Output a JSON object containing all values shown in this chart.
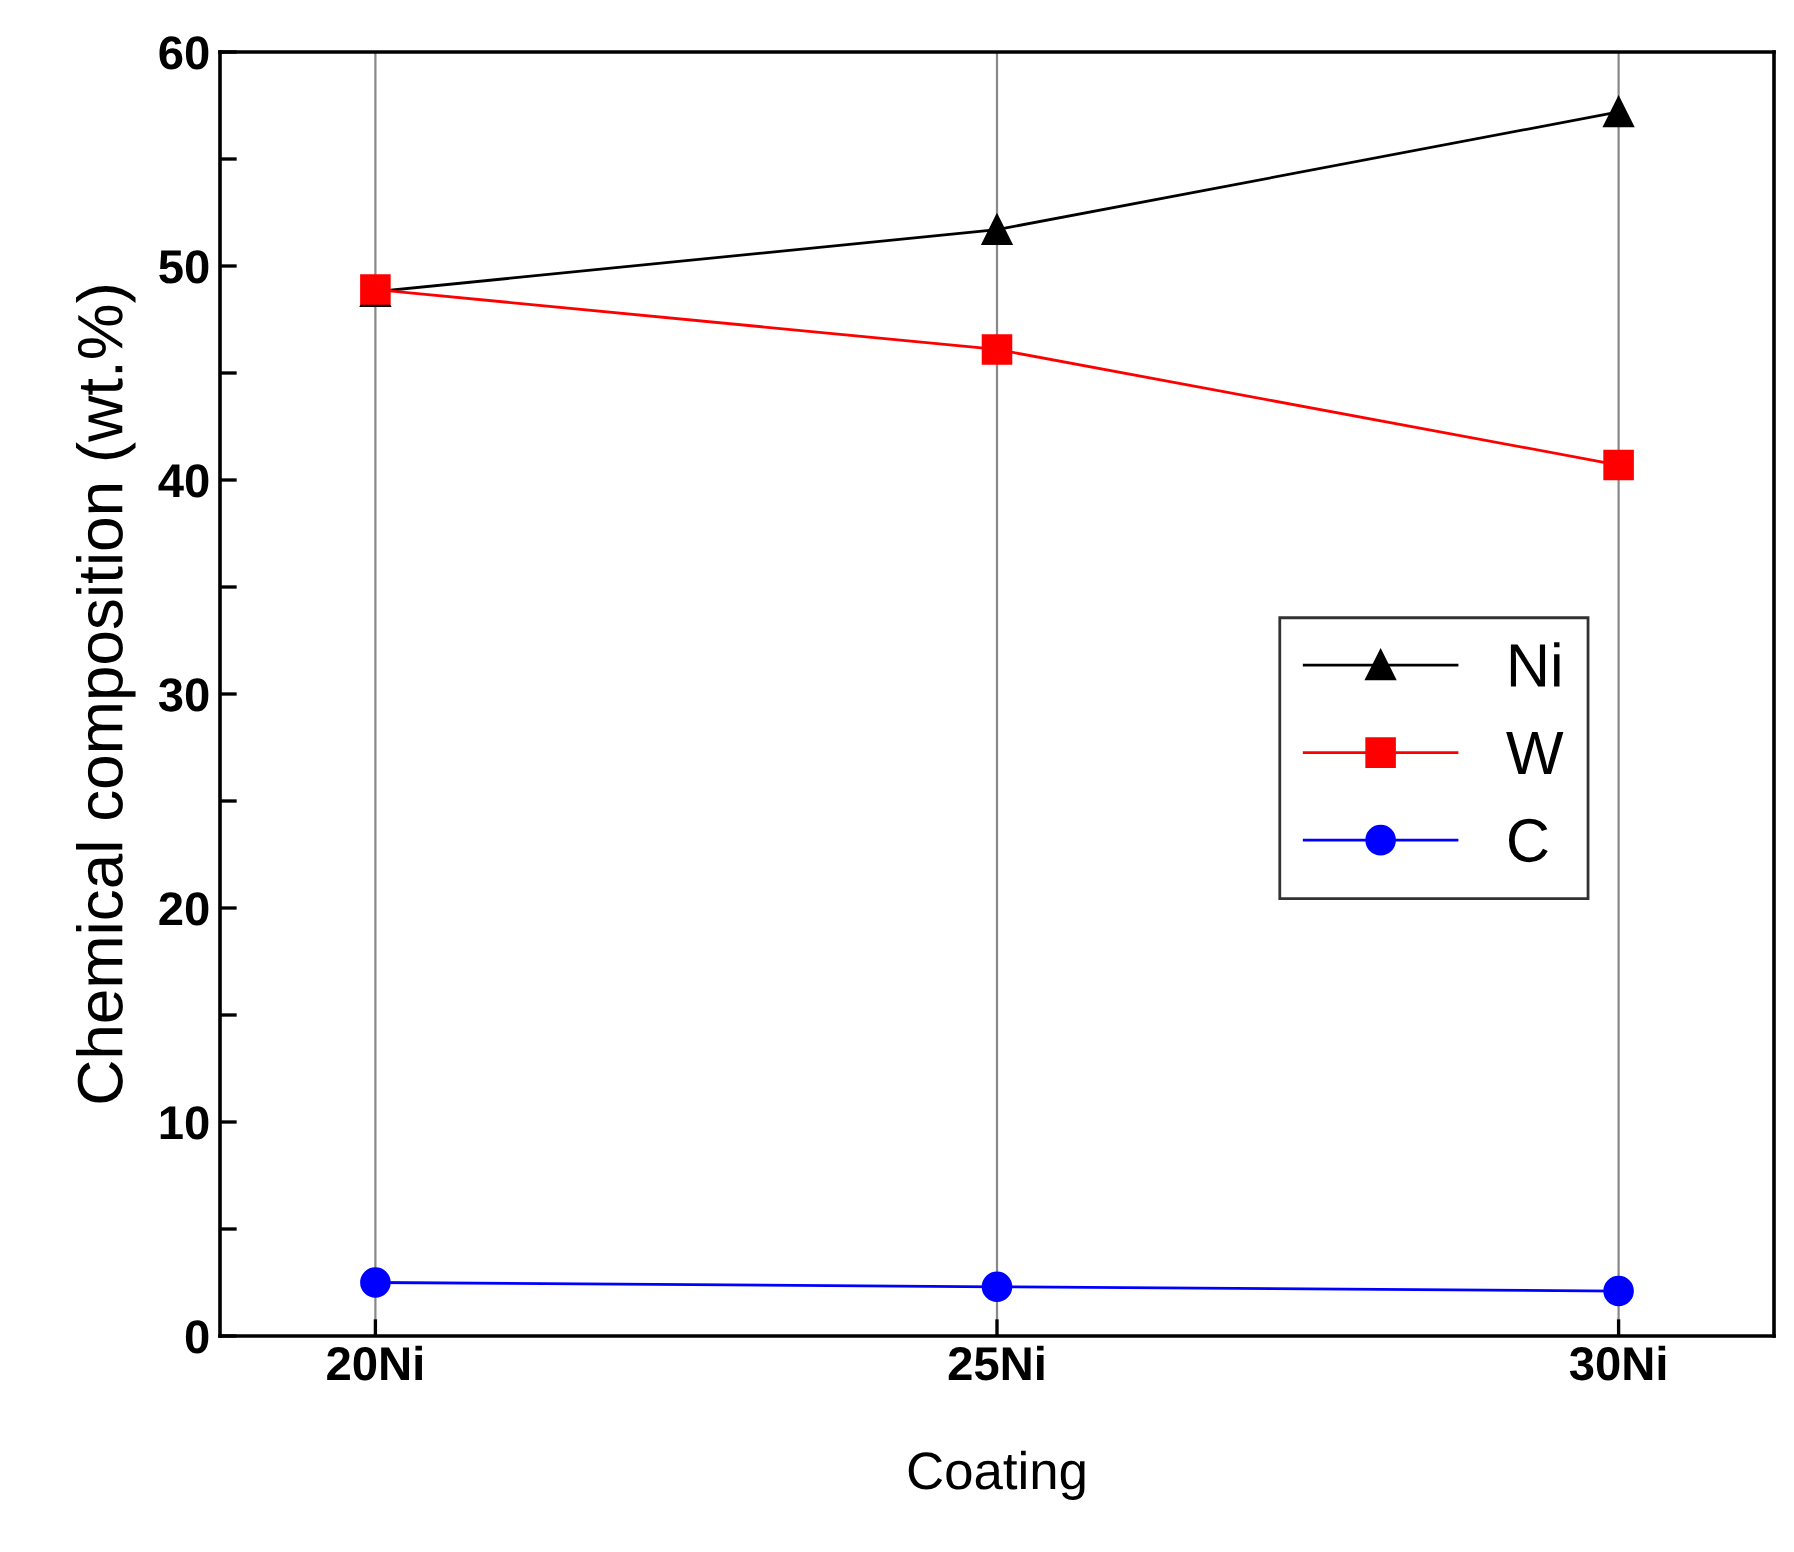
{
  "chart_data": {
    "type": "line",
    "xlabel": "Coating",
    "ylabel": "Chemical composition (wt.%)",
    "categories": [
      "20Ni",
      "25Ni",
      "30Ni"
    ],
    "series": [
      {
        "name": "Ni",
        "color": "#000000",
        "marker": "triangle",
        "values": [
          48.8,
          51.7,
          57.2
        ]
      },
      {
        "name": "W",
        "color": "#ff0000",
        "marker": "square",
        "values": [
          48.9,
          46.1,
          40.7
        ]
      },
      {
        "name": "C",
        "color": "#0000ff",
        "marker": "circle",
        "values": [
          2.5,
          2.3,
          2.1
        ]
      }
    ],
    "ylim": [
      0,
      60
    ],
    "yticks": [
      0,
      {
        "value": 5,
        "label": null
      },
      10,
      {
        "value": 15,
        "label": null
      },
      20,
      {
        "value": 25,
        "label": null
      },
      30,
      {
        "value": 35,
        "label": null
      },
      40,
      {
        "value": 45,
        "label": null
      },
      50,
      {
        "value": 55,
        "label": null
      },
      60
    ],
    "grid": "x",
    "legend": "right",
    "line_style": "solid"
  }
}
